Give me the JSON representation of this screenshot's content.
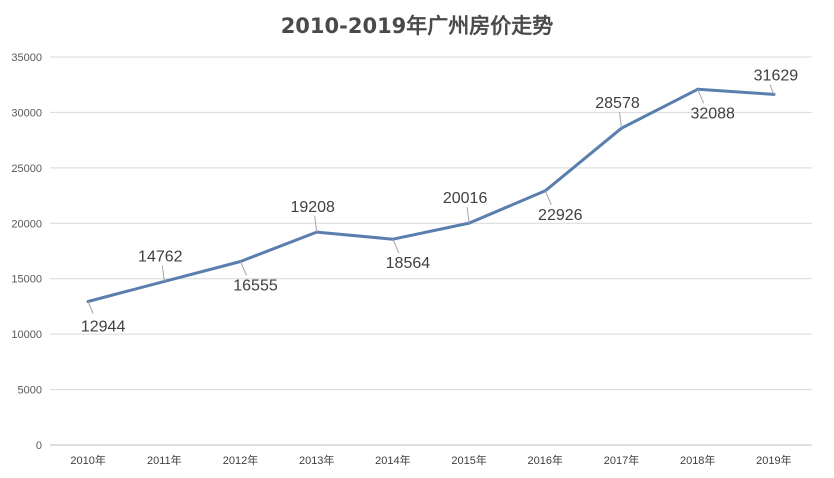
{
  "chart_data": {
    "type": "line",
    "title": "2010-2019年广州房价走势",
    "categories": [
      "2010年",
      "2011年",
      "2012年",
      "2013年",
      "2014年",
      "2015年",
      "2016年",
      "2017年",
      "2018年",
      "2019年"
    ],
    "series": [
      {
        "values": [
          12944,
          14762,
          16555,
          19208,
          18564,
          20016,
          22926,
          28578,
          32088,
          31629
        ]
      }
    ],
    "data_labels": [
      "12944",
      "14762",
      "16555",
      "19208",
      "18564",
      "20016",
      "22926",
      "28578",
      "32088",
      "31629"
    ],
    "data_label_sides": [
      "below",
      "above",
      "below",
      "above",
      "below",
      "above",
      "below",
      "above",
      "below",
      "above"
    ],
    "yticks": [
      "0",
      "5000",
      "10000",
      "15000",
      "20000",
      "25000",
      "30000",
      "35000"
    ],
    "ylim": [
      0,
      35000
    ],
    "xlabel": "",
    "ylabel": "",
    "grid": true,
    "legend": "none",
    "colors": {
      "series": "#5a7fae",
      "grid": "#d9d9d9",
      "text": "#404040",
      "title": "#4a4a4a"
    }
  }
}
